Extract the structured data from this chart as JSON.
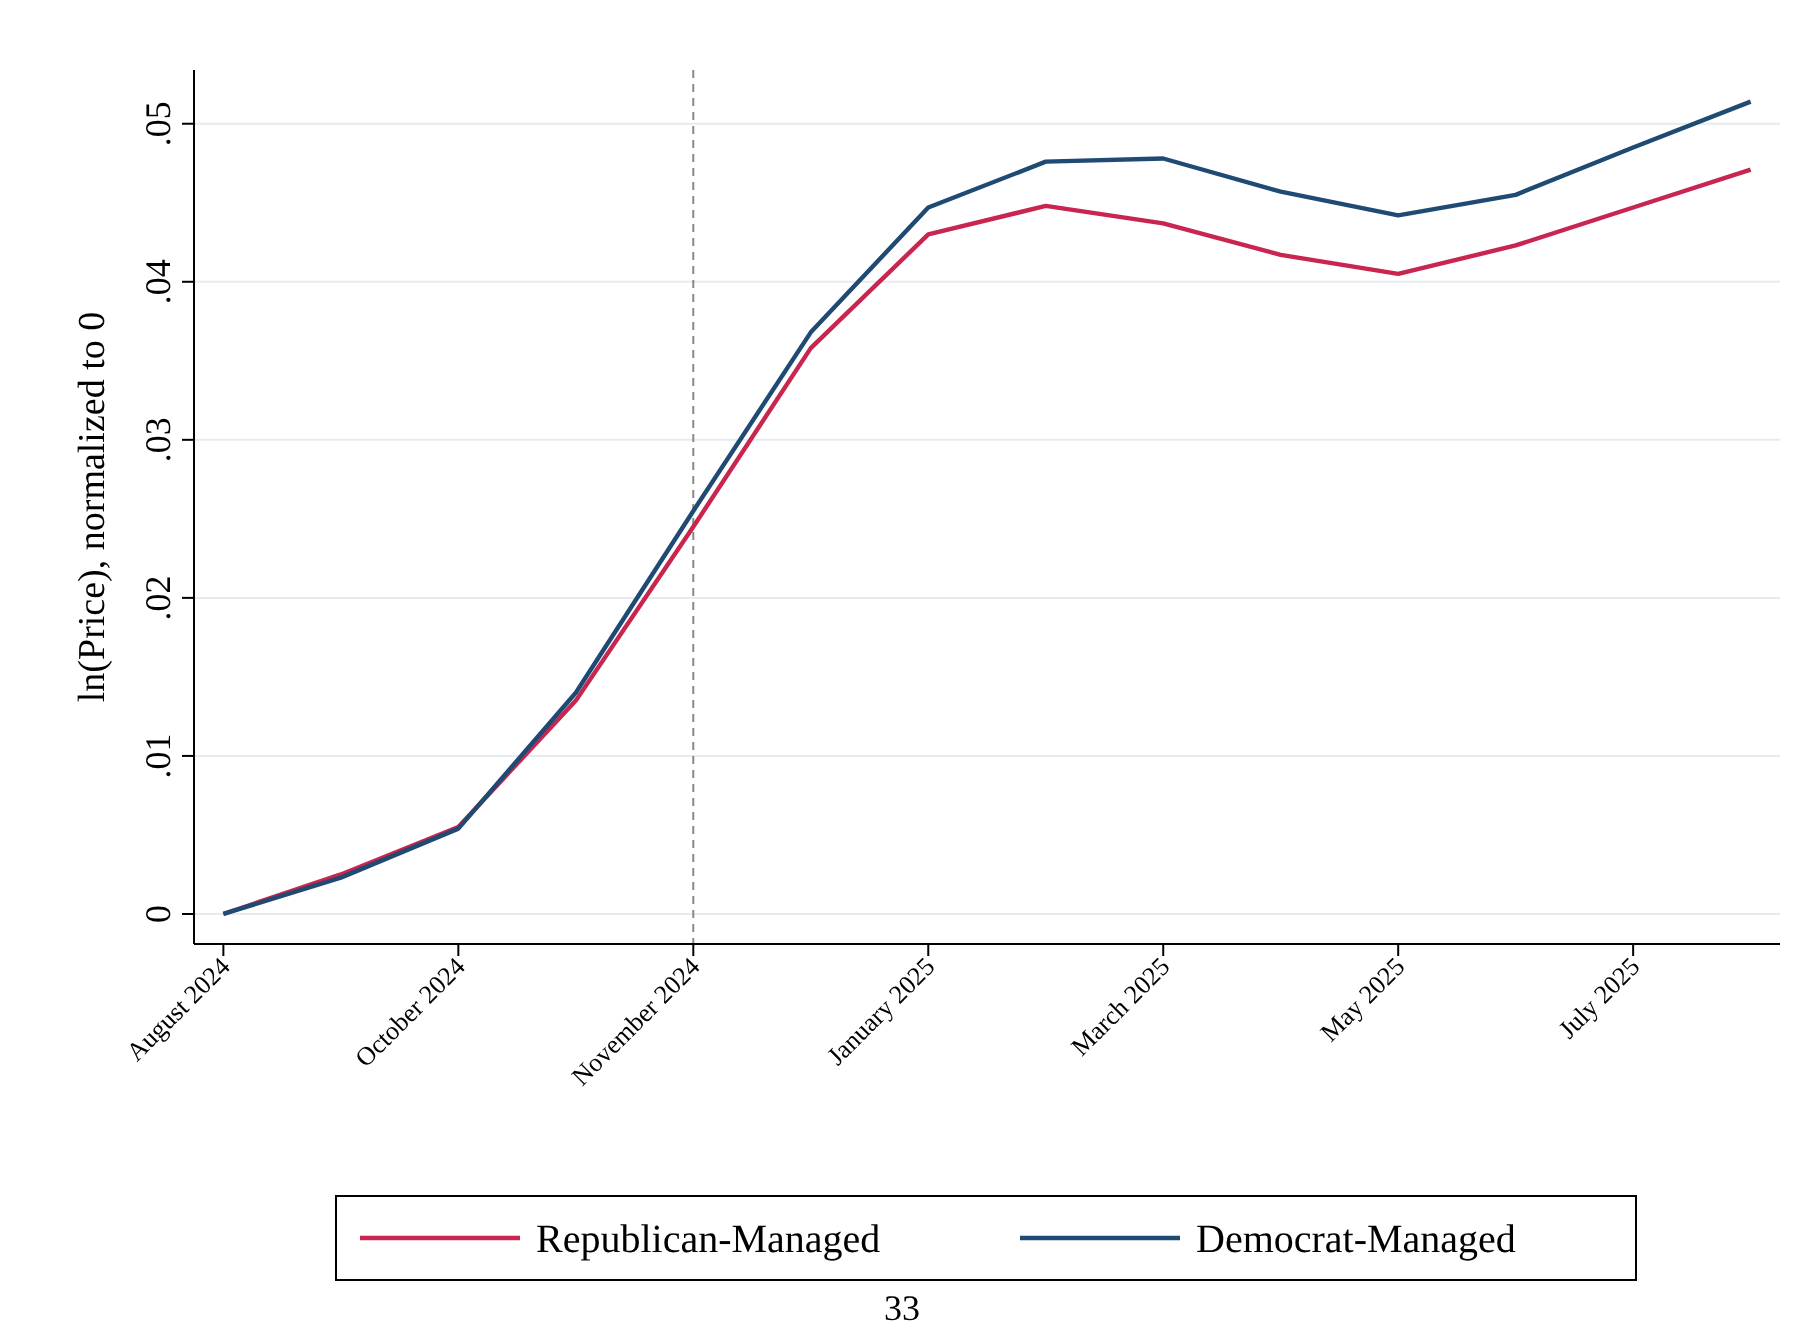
{
  "chart_data": {
    "type": "line",
    "ylabel": "ln(Price), normalized to 0",
    "categories": [
      "August 2024",
      null,
      "October 2024",
      null,
      "November 2024",
      null,
      "January 2025",
      null,
      "March 2025",
      null,
      "May 2025",
      null,
      "July 2025",
      null
    ],
    "ylim": [
      -0.0019,
      0.0534
    ],
    "yticks": [
      {
        "value": 0,
        "label": "0"
      },
      {
        "value": 0.01,
        "label": ".01"
      },
      {
        "value": 0.02,
        "label": ".02"
      },
      {
        "value": 0.03,
        "label": ".03"
      },
      {
        "value": 0.04,
        "label": ".04"
      },
      {
        "value": 0.05,
        "label": ".05"
      }
    ],
    "grid": "y",
    "legend": "bottom",
    "line_style": "solid",
    "ref_lines": [
      {
        "axis": "x",
        "value": "November 2024",
        "color": "#888888",
        "line_style": "dashed"
      }
    ],
    "annotations": [
      "33"
    ],
    "series": [
      {
        "name": "Republican-Managed",
        "color": "#c8254f",
        "values": [
          0,
          0.0025,
          0.0055,
          0.0135,
          0.0245,
          0.0358,
          0.043,
          0.0448,
          0.0437,
          0.0417,
          0.0405,
          0.0423,
          0.0447,
          0.0471
        ]
      },
      {
        "name": "Democrat-Managed",
        "color": "#1f4a73",
        "values": [
          0,
          0.0023,
          0.0054,
          0.014,
          0.0255,
          0.0368,
          0.0447,
          0.0476,
          0.0478,
          0.0457,
          0.0442,
          0.0455,
          0.0485,
          0.0514
        ]
      }
    ]
  }
}
